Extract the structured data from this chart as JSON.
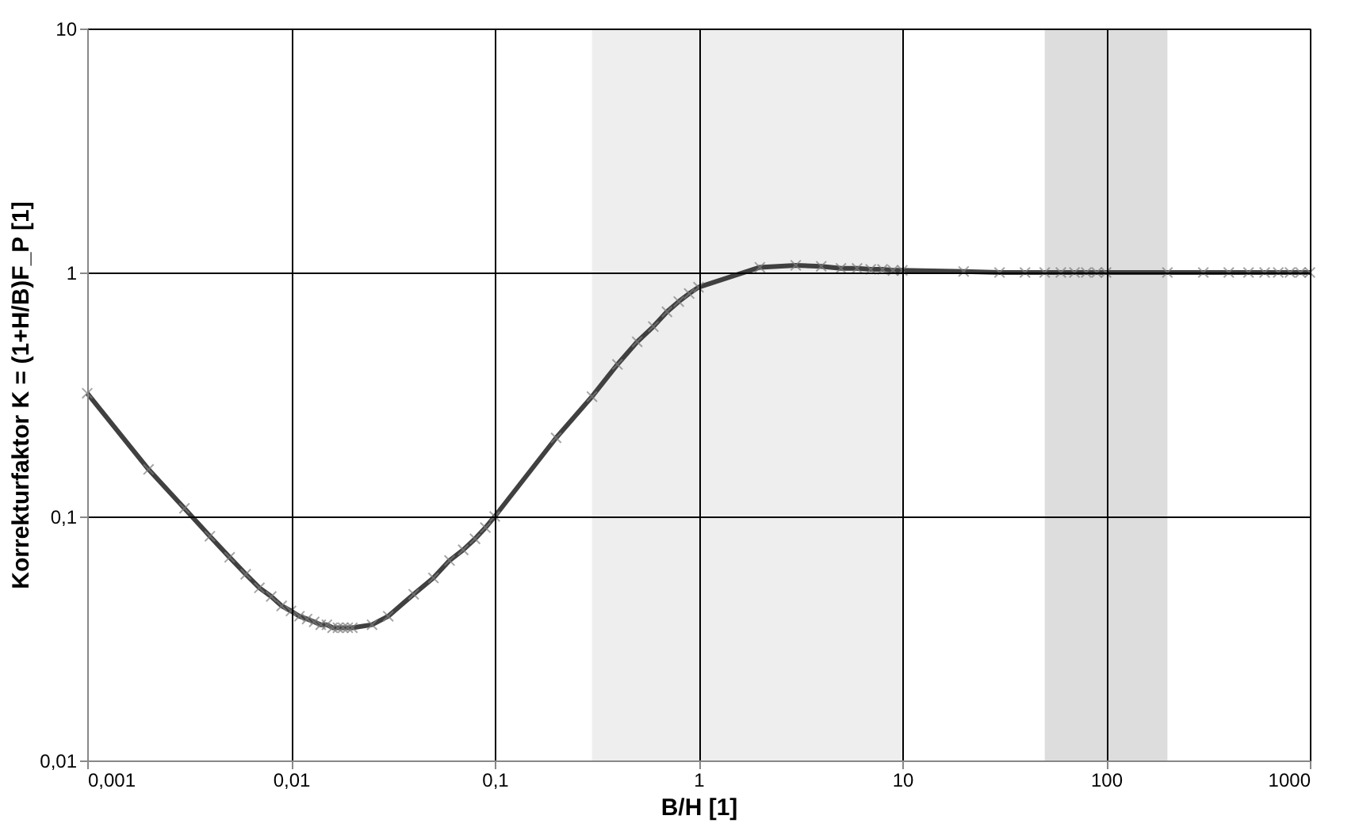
{
  "chart_data": {
    "type": "line",
    "xlabel": "B/H [1]",
    "ylabel": "Korrekturfaktor K = (1+H/B)F_P [1]",
    "x": [
      0.001,
      0.002,
      0.003,
      0.004,
      0.005,
      0.006,
      0.007,
      0.008,
      0.009,
      0.01,
      0.011,
      0.012,
      0.013,
      0.014,
      0.015,
      0.016,
      0.017,
      0.018,
      0.019,
      0.02,
      0.025,
      0.03,
      0.04,
      0.05,
      0.06,
      0.07,
      0.08,
      0.09,
      0.1,
      0.2,
      0.3,
      0.4,
      0.5,
      0.6,
      0.7,
      0.8,
      0.9,
      1,
      2,
      3,
      4,
      5,
      6,
      7,
      8,
      9,
      10,
      20,
      30,
      40,
      50,
      60,
      70,
      80,
      90,
      100,
      200,
      300,
      400,
      500,
      600,
      700,
      800,
      900,
      1000
    ],
    "series": [
      {
        "color": "#404040",
        "values": [
          0.32,
          0.156,
          0.108,
          0.083,
          0.068,
          0.058,
          0.051,
          0.047,
          0.043,
          0.041,
          0.039,
          0.038,
          0.037,
          0.036,
          0.036,
          0.035,
          0.035,
          0.035,
          0.035,
          0.035,
          0.036,
          0.039,
          0.048,
          0.056,
          0.066,
          0.073,
          0.081,
          0.09,
          0.1,
          0.21,
          0.31,
          0.42,
          0.52,
          0.6,
          0.69,
          0.76,
          0.82,
          0.87,
          1.05,
          1.07,
          1.06,
          1.04,
          1.04,
          1.03,
          1.03,
          1.02,
          1.02,
          1.01,
          1.0,
          1.0,
          1.0,
          1.0,
          1.0,
          1.0,
          1.0,
          1.0,
          1.0,
          1.0,
          1.0,
          1.0,
          1.0,
          1.0,
          1.0,
          1.0,
          1.0
        ]
      }
    ],
    "xlim": [
      0.001,
      1000
    ],
    "ylim": [
      0.01,
      10
    ],
    "xticks": [
      {
        "value": 0.001,
        "label": "0,001"
      },
      {
        "value": 0.01,
        "label": "0,01"
      },
      {
        "value": 0.1,
        "label": "0,1"
      },
      1,
      10,
      100,
      1000
    ],
    "yticks": [
      {
        "value": 0.01,
        "label": "0,01"
      },
      {
        "value": 0.1,
        "label": "0,1"
      },
      1,
      10
    ],
    "log": "xy",
    "grid": true,
    "marker": "cross",
    "line_style": "solid",
    "bands": [
      {
        "axis": "x",
        "from": 0.3,
        "to": 10,
        "color": "#eeeeee"
      },
      {
        "axis": "x",
        "from": 50,
        "to": 200,
        "color": "#dddddd"
      }
    ]
  }
}
